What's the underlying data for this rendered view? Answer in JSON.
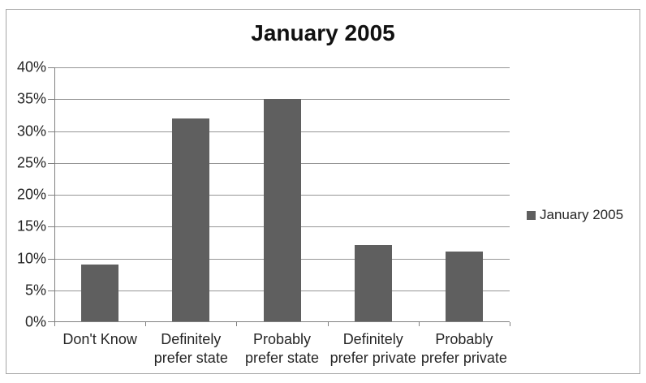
{
  "chart_data": {
    "type": "bar",
    "title": "January 2005",
    "categories": [
      "Don't Know",
      "Definitely prefer state",
      "Probably prefer state",
      "Definitely prefer private",
      "Probably prefer private"
    ],
    "series": [
      {
        "name": "January 2005",
        "values": [
          9,
          32,
          35,
          12,
          11
        ]
      }
    ],
    "value_unit": "%",
    "xlabel": "",
    "ylabel": "",
    "ylim": [
      0,
      40
    ],
    "ytick_step": 5,
    "ytick_labels": [
      "0%",
      "5%",
      "10%",
      "15%",
      "20%",
      "25%",
      "30%",
      "35%",
      "40%"
    ],
    "grid": true,
    "legend_position": "right",
    "colors": {
      "bar": "#5f5f5f",
      "gridline": "#969696",
      "axis": "#808080",
      "frame_border": "#a6a6a6",
      "text": "#262626",
      "title": "#111111"
    }
  }
}
